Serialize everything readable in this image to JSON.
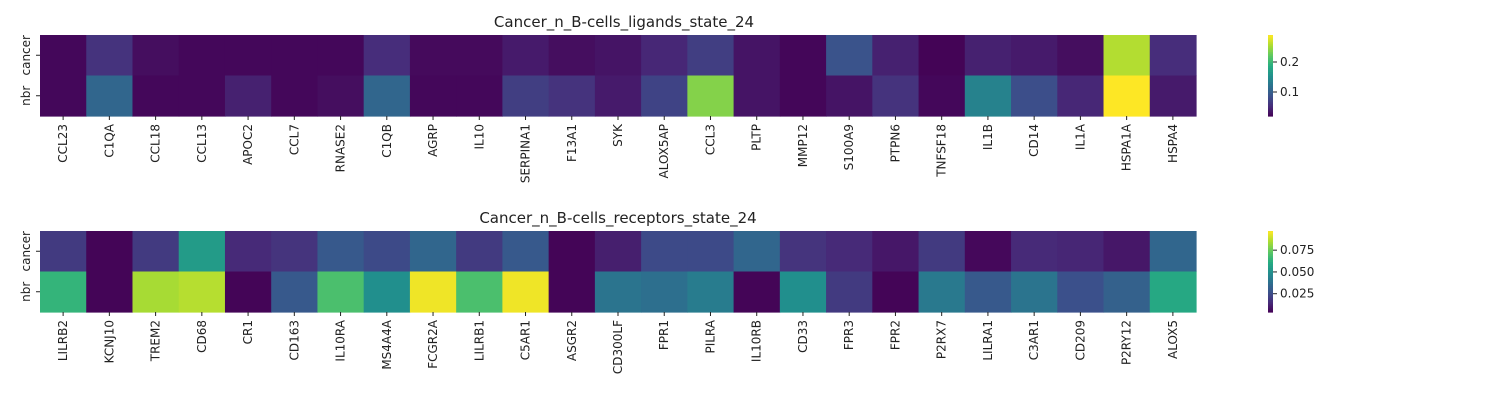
{
  "chart_data": [
    {
      "type": "heatmap",
      "title": "Cancer_n_B-cells_ligands_state_24",
      "rows": [
        "cancer",
        "nbr"
      ],
      "columns": [
        "CCL23",
        "C1QA",
        "CCL18",
        "CCL13",
        "APOC2",
        "CCL7",
        "RNASE2",
        "C1QB",
        "AGRP",
        "IL10",
        "SERPINA1",
        "F13A1",
        "SYK",
        "ALOX5AP",
        "CCL3",
        "PLTP",
        "MMP12",
        "S100A9",
        "PTPN6",
        "TNFSF18",
        "IL1B",
        "CD14",
        "IL1A",
        "HSPA1A",
        "HSPA4"
      ],
      "values": [
        [
          0.025,
          0.06,
          0.03,
          0.025,
          0.025,
          0.025,
          0.025,
          0.055,
          0.027,
          0.027,
          0.04,
          0.03,
          0.035,
          0.05,
          0.07,
          0.035,
          0.024,
          0.09,
          0.045,
          0.022,
          0.045,
          0.04,
          0.03,
          0.26,
          0.055
        ],
        [
          0.025,
          0.11,
          0.025,
          0.025,
          0.045,
          0.025,
          0.03,
          0.11,
          0.025,
          0.025,
          0.07,
          0.06,
          0.04,
          0.075,
          0.24,
          0.035,
          0.024,
          0.035,
          0.06,
          0.025,
          0.14,
          0.085,
          0.05,
          0.29,
          0.04
        ]
      ],
      "colorbar": {
        "min": 0.02,
        "max": 0.29,
        "ticks": [
          0.1,
          0.2
        ],
        "tick_labels": [
          "0.1",
          "0.2"
        ]
      },
      "colormap": "viridis"
    },
    {
      "type": "heatmap",
      "title": "Cancer_n_B-cells_receptors_state_24",
      "rows": [
        "cancer",
        "nbr"
      ],
      "columns": [
        "LILRB2",
        "KCNJ10",
        "TREM2",
        "CD68",
        "CR1",
        "CD163",
        "IL10RA",
        "MS4A4A",
        "FCGR2A",
        "LILRB1",
        "C5AR1",
        "ASGR2",
        "CD300LF",
        "FPR1",
        "PILRA",
        "IL10RB",
        "CD33",
        "FPR3",
        "FPR2",
        "P2RX7",
        "LILRA1",
        "C3AR1",
        "CD209",
        "P2RY12",
        "ALOX5"
      ],
      "values": [
        [
          0.02,
          0.005,
          0.02,
          0.055,
          0.015,
          0.018,
          0.03,
          0.025,
          0.035,
          0.02,
          0.03,
          0.005,
          0.012,
          0.025,
          0.025,
          0.035,
          0.018,
          0.015,
          0.01,
          0.02,
          0.006,
          0.015,
          0.014,
          0.01,
          0.035
        ],
        [
          0.065,
          0.005,
          0.085,
          0.087,
          0.005,
          0.03,
          0.07,
          0.05,
          0.095,
          0.07,
          0.095,
          0.005,
          0.04,
          0.038,
          0.043,
          0.005,
          0.05,
          0.02,
          0.005,
          0.042,
          0.03,
          0.04,
          0.027,
          0.033,
          0.06
        ]
      ],
      "colorbar": {
        "min": 0.004,
        "max": 0.097,
        "ticks": [
          0.025,
          0.05,
          0.075
        ],
        "tick_labels": [
          "0.025",
          "0.050",
          "0.075"
        ]
      },
      "colormap": "viridis"
    }
  ]
}
